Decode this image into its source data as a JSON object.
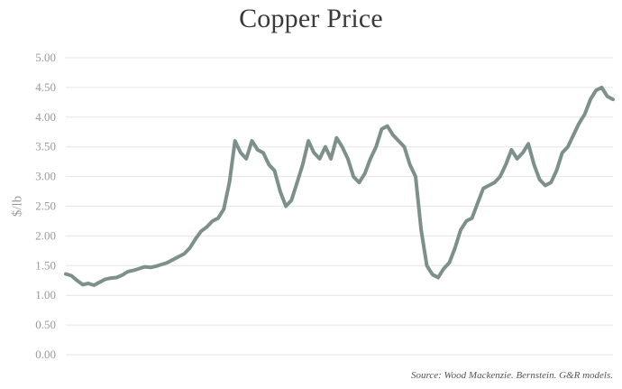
{
  "chart_data": {
    "type": "line",
    "title": "Copper Price",
    "ylabel": "$/lb",
    "xlabel": "",
    "ylim": [
      0,
      5
    ],
    "yticks": [
      "0.00",
      "0.50",
      "1.00",
      "1.50",
      "2.00",
      "2.50",
      "3.00",
      "3.50",
      "4.00",
      "4.50",
      "5.00"
    ],
    "grid": true,
    "legend": "none",
    "line_color": "#7e908b",
    "source": "Source: Wood Mackenzie. Bernstein. G&R models.",
    "series": [
      {
        "values": [
          1.36,
          1.33,
          1.25,
          1.18,
          1.2,
          1.17,
          1.22,
          1.27,
          1.29,
          1.3,
          1.34,
          1.4,
          1.42,
          1.45,
          1.48,
          1.47,
          1.49,
          1.52,
          1.55,
          1.6,
          1.65,
          1.7,
          1.8,
          1.95,
          2.08,
          2.15,
          2.25,
          2.3,
          2.45,
          2.9,
          3.6,
          3.4,
          3.3,
          3.6,
          3.45,
          3.4,
          3.2,
          3.1,
          2.75,
          2.5,
          2.6,
          2.9,
          3.2,
          3.6,
          3.4,
          3.3,
          3.5,
          3.3,
          3.65,
          3.5,
          3.3,
          3.0,
          2.9,
          3.05,
          3.3,
          3.5,
          3.8,
          3.85,
          3.7,
          3.6,
          3.5,
          3.2,
          3.0,
          2.1,
          1.5,
          1.35,
          1.3,
          1.45,
          1.55,
          1.8,
          2.1,
          2.25,
          2.3,
          2.55,
          2.8,
          2.85,
          2.9,
          3.0,
          3.2,
          3.45,
          3.3,
          3.4,
          3.55,
          3.2,
          2.95,
          2.85,
          2.9,
          3.1,
          3.4,
          3.5,
          3.7,
          3.9,
          4.05,
          4.3,
          4.45,
          4.5,
          4.35,
          4.3
        ]
      }
    ]
  }
}
